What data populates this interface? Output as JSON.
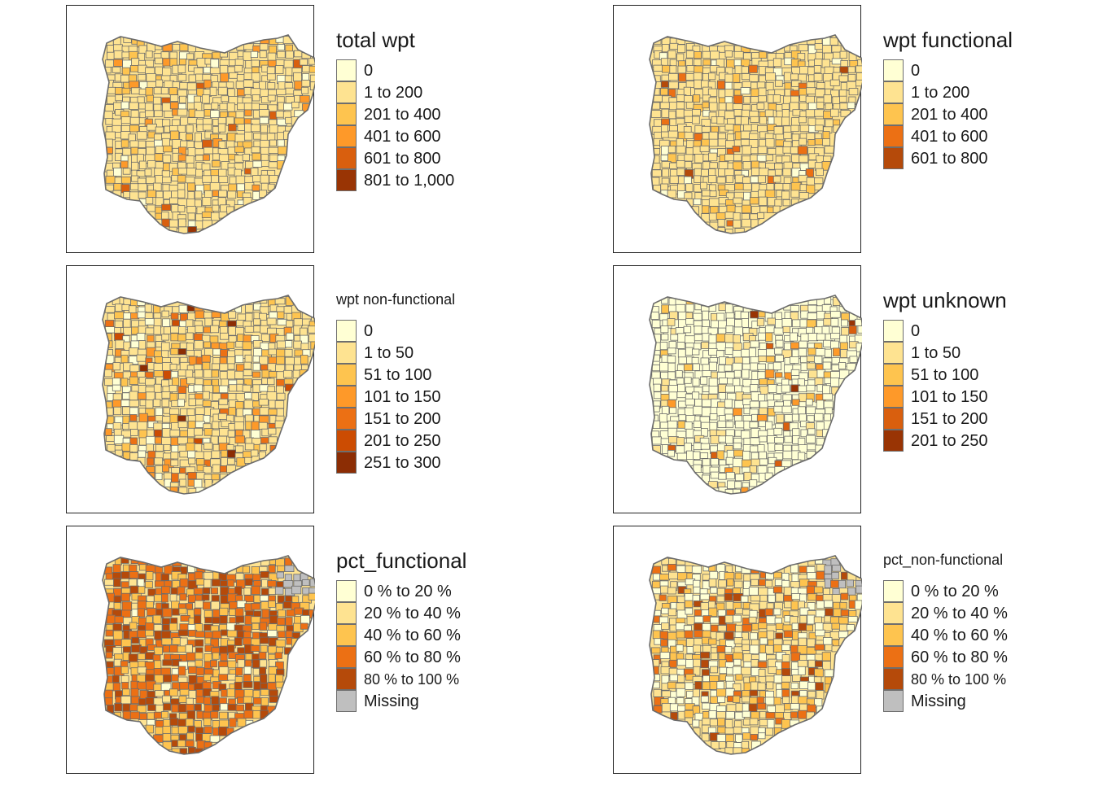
{
  "panels": [
    {
      "title": "total wpt",
      "title_size": "big",
      "classes": [
        {
          "label": "0",
          "color": "#ffffd4"
        },
        {
          "label": "1 to 200",
          "color": "#fee391"
        },
        {
          "label": "201 to 400",
          "color": "#fec44f"
        },
        {
          "label": "401 to 600",
          "color": "#fe9929"
        },
        {
          "label": "601 to 800",
          "color": "#d95f0e"
        },
        {
          "label": "801 to 1,000",
          "color": "#993404"
        }
      ]
    },
    {
      "title": "wpt functional",
      "title_size": "big",
      "classes": [
        {
          "label": "0",
          "color": "#ffffd4"
        },
        {
          "label": "1 to 200",
          "color": "#fee391"
        },
        {
          "label": "201 to 400",
          "color": "#fec44f"
        },
        {
          "label": "401 to 600",
          "color": "#ec7014"
        },
        {
          "label": "601 to 800",
          "color": "#b54a0a"
        }
      ]
    },
    {
      "title": "wpt non-functional",
      "title_size": "small",
      "classes": [
        {
          "label": "0",
          "color": "#ffffd4"
        },
        {
          "label": "1 to 50",
          "color": "#fee391"
        },
        {
          "label": "51 to 100",
          "color": "#fec44f"
        },
        {
          "label": "101 to 150",
          "color": "#fe9929"
        },
        {
          "label": "151 to 200",
          "color": "#ec7014"
        },
        {
          "label": "201 to 250",
          "color": "#cc4c02"
        },
        {
          "label": "251 to 300",
          "color": "#8c2d04"
        }
      ]
    },
    {
      "title": "wpt unknown",
      "title_size": "big",
      "classes": [
        {
          "label": "0",
          "color": "#ffffd4"
        },
        {
          "label": "1 to 50",
          "color": "#fee391"
        },
        {
          "label": "51 to 100",
          "color": "#fec44f"
        },
        {
          "label": "101 to 150",
          "color": "#fe9929"
        },
        {
          "label": "151 to 200",
          "color": "#d95f0e"
        },
        {
          "label": "201 to 250",
          "color": "#993404"
        }
      ]
    },
    {
      "title": "pct_functional",
      "title_size": "big",
      "classes": [
        {
          "label": "0 % to 20 %",
          "color": "#ffffd4"
        },
        {
          "label": "20 % to 40 %",
          "color": "#fee391"
        },
        {
          "label": "40 % to 60 %",
          "color": "#fec44f"
        },
        {
          "label": "60 % to 80 %",
          "color": "#ec7014"
        },
        {
          "label": "80 % to 100 %",
          "color": "#b54a0a",
          "small": true
        },
        {
          "label": "Missing",
          "color": "#bfbfbf"
        }
      ]
    },
    {
      "title": "pct_non-functional",
      "title_size": "small",
      "classes": [
        {
          "label": "0 % to 20 %",
          "color": "#ffffd4"
        },
        {
          "label": "20 % to 40 %",
          "color": "#fee391"
        },
        {
          "label": "40 % to 60 %",
          "color": "#fec44f"
        },
        {
          "label": "60 % to 80 %",
          "color": "#ec7014"
        },
        {
          "label": "80 % to 100 %",
          "color": "#b54a0a",
          "small": true
        },
        {
          "label": "Missing",
          "color": "#bfbfbf"
        }
      ]
    }
  ],
  "map_style": {
    "border_color": "#6b6b6b",
    "base_fill": "#fee391"
  }
}
